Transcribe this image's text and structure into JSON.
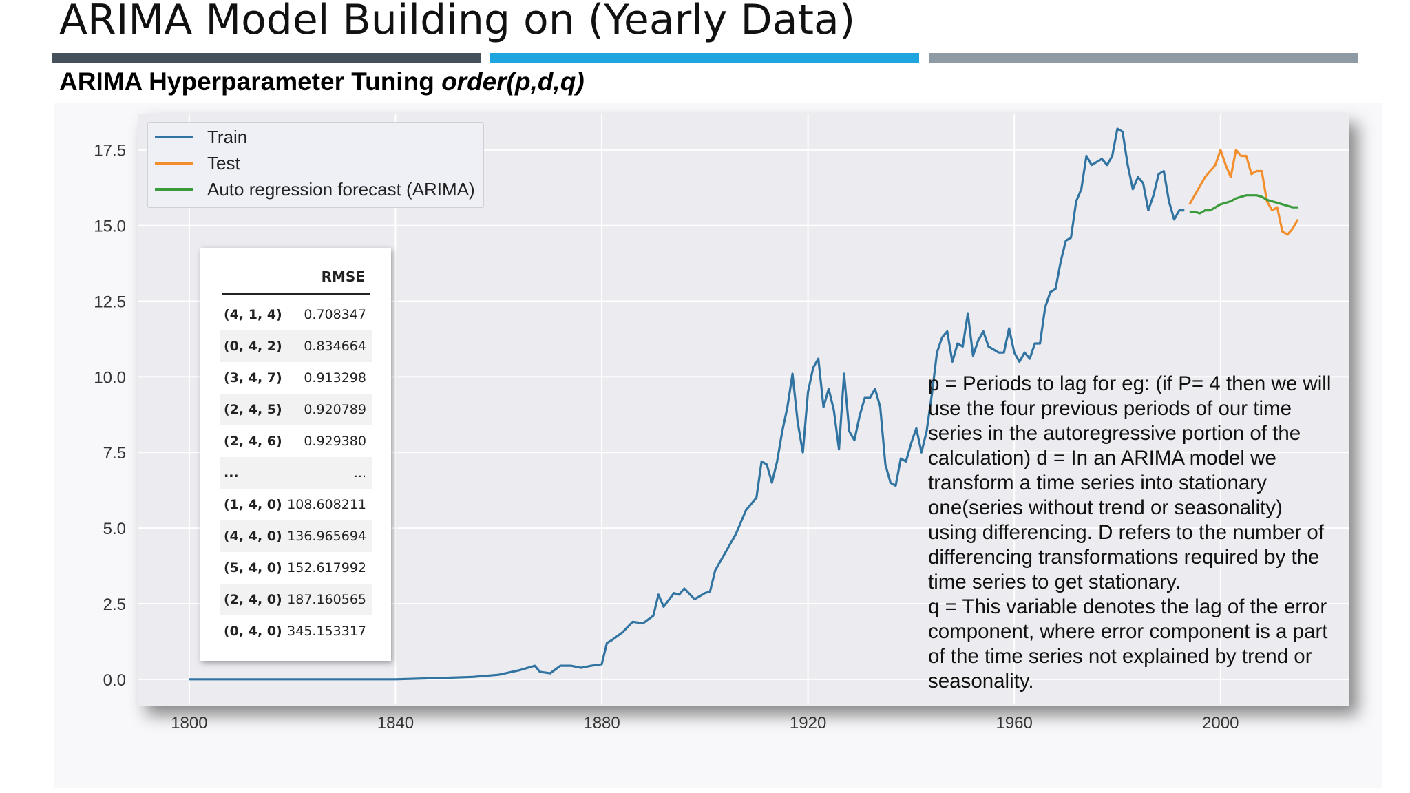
{
  "title": "ARIMA Model Building on (Yearly Data)",
  "subtitle": {
    "main": "ARIMA Hyperparameter Tuning ",
    "italic": "order(p,d,q)"
  },
  "colors": {
    "train": "#3274a1",
    "test": "#f28e2b",
    "forecast": "#3a9b3a",
    "bar_dark": "#44505c",
    "bar_blue": "#1fa5de",
    "bar_gray": "#8f9ba4"
  },
  "rmse_table": {
    "header": "RMSE",
    "rows": [
      {
        "order": "(4, 1, 4)",
        "rmse": "0.708347"
      },
      {
        "order": "(0, 4, 2)",
        "rmse": "0.834664"
      },
      {
        "order": "(3, 4, 7)",
        "rmse": "0.913298"
      },
      {
        "order": "(2, 4, 5)",
        "rmse": "0.920789"
      },
      {
        "order": "(2, 4, 6)",
        "rmse": "0.929380"
      },
      {
        "order": "...",
        "rmse": "..."
      },
      {
        "order": "(1, 4, 0)",
        "rmse": "108.608211"
      },
      {
        "order": "(4, 4, 0)",
        "rmse": "136.965694"
      },
      {
        "order": "(5, 4, 0)",
        "rmse": "152.617992"
      },
      {
        "order": "(2, 4, 0)",
        "rmse": "187.160565"
      },
      {
        "order": "(0, 4, 0)",
        "rmse": "345.153317"
      }
    ]
  },
  "explanation": {
    "p": "p = Periods to lag for eg: (if P= 4 then we will use the four previous periods of our time series in the autoregressive portion of the calculation) d = In an ARIMA model we transform a time series into stationary one(series without trend or seasonality) using differencing. D refers to the number of differencing transformations required by the time series to get stationary.",
    "q": "q = This variable denotes the lag of the error component, where error component is a part of the time series not explained by trend or seasonality."
  },
  "chart_data": {
    "type": "line",
    "xlim": [
      1790,
      2025
    ],
    "ylim": [
      -0.8,
      18.7
    ],
    "x_ticks": [
      1800,
      1840,
      1880,
      1920,
      1960,
      2000
    ],
    "y_ticks": [
      0.0,
      2.5,
      5.0,
      7.5,
      10.0,
      12.5,
      15.0,
      17.5
    ],
    "y_tick_labels": [
      "0.0",
      "2.5",
      "5.0",
      "7.5",
      "10.0",
      "12.5",
      "15.0",
      "17.5"
    ],
    "grid": true,
    "legend_position": "top-left",
    "series": [
      {
        "name": "Train",
        "x": [
          1800,
          1840,
          1850,
          1855,
          1860,
          1864,
          1867,
          1868,
          1870,
          1872,
          1874,
          1876,
          1878,
          1880,
          1881,
          1882,
          1884,
          1886,
          1888,
          1890,
          1891,
          1892,
          1894,
          1895,
          1896,
          1898,
          1900,
          1901,
          1902,
          1904,
          1905,
          1906,
          1908,
          1909,
          1910,
          1911,
          1912,
          1913,
          1914,
          1915,
          1916,
          1917,
          1918,
          1919,
          1920,
          1921,
          1922,
          1923,
          1924,
          1925,
          1926,
          1927,
          1928,
          1929,
          1930,
          1931,
          1932,
          1933,
          1934,
          1935,
          1936,
          1937,
          1938,
          1939,
          1940,
          1941,
          1942,
          1943,
          1944,
          1945,
          1946,
          1947,
          1948,
          1949,
          1950,
          1951,
          1952,
          1953,
          1954,
          1955,
          1956,
          1957,
          1958,
          1959,
          1960,
          1961,
          1962,
          1963,
          1964,
          1965,
          1966,
          1967,
          1968,
          1969,
          1970,
          1971,
          1972,
          1973,
          1974,
          1975,
          1976,
          1977,
          1978,
          1979,
          1980,
          1981,
          1982,
          1983,
          1984,
          1985,
          1986,
          1987,
          1988,
          1989,
          1990,
          1991,
          1992,
          1993
        ],
        "values": [
          0.0,
          0.0,
          0.05,
          0.08,
          0.15,
          0.3,
          0.45,
          0.25,
          0.2,
          0.45,
          0.45,
          0.38,
          0.45,
          0.5,
          1.2,
          1.3,
          1.55,
          1.9,
          1.85,
          2.1,
          2.8,
          2.4,
          2.85,
          2.8,
          3.0,
          2.65,
          2.85,
          2.9,
          3.6,
          4.2,
          4.5,
          4.8,
          5.6,
          5.8,
          6.0,
          7.2,
          7.1,
          6.5,
          7.2,
          8.2,
          9.0,
          10.1,
          8.5,
          7.5,
          9.5,
          10.3,
          10.6,
          9.0,
          9.6,
          8.9,
          7.6,
          10.1,
          8.2,
          7.9,
          8.7,
          9.3,
          9.3,
          9.6,
          9.0,
          7.1,
          6.5,
          6.4,
          7.3,
          7.2,
          7.8,
          8.3,
          7.5,
          8.2,
          9.4,
          10.8,
          11.3,
          11.5,
          10.5,
          11.1,
          11.0,
          12.1,
          10.7,
          11.2,
          11.5,
          11.0,
          10.9,
          10.8,
          10.8,
          11.6,
          10.8,
          10.5,
          10.8,
          10.6,
          11.1,
          11.1,
          12.3,
          12.8,
          12.9,
          13.8,
          14.5,
          14.6,
          15.8,
          16.2,
          17.3,
          17.0,
          17.1,
          17.2,
          17.0,
          17.3,
          18.2,
          18.1,
          17.0,
          16.2,
          16.6,
          16.4,
          15.5,
          16.0,
          16.7,
          16.8,
          15.8,
          15.2,
          15.5,
          15.5
        ]
      },
      {
        "name": "Test",
        "x": [
          1994,
          1995,
          1996,
          1997,
          1998,
          1999,
          2000,
          2001,
          2002,
          2003,
          2004,
          2005,
          2006,
          2007,
          2008,
          2009,
          2010,
          2011,
          2012,
          2013,
          2014,
          2015
        ],
        "values": [
          15.7,
          16.0,
          16.3,
          16.6,
          16.8,
          17.0,
          17.5,
          17.0,
          16.6,
          17.5,
          17.3,
          17.3,
          16.7,
          16.8,
          16.8,
          15.8,
          15.5,
          15.6,
          14.8,
          14.7,
          14.9,
          15.2
        ]
      },
      {
        "name": "Auto regression forecast (ARIMA)",
        "x": [
          1994,
          1995,
          1996,
          1997,
          1998,
          1999,
          2000,
          2001,
          2002,
          2003,
          2004,
          2005,
          2006,
          2007,
          2008,
          2009,
          2010,
          2011,
          2012,
          2013,
          2014,
          2015
        ],
        "values": [
          15.45,
          15.45,
          15.4,
          15.5,
          15.5,
          15.6,
          15.7,
          15.75,
          15.8,
          15.9,
          15.95,
          16.0,
          16.0,
          16.0,
          15.95,
          15.85,
          15.8,
          15.75,
          15.7,
          15.65,
          15.6,
          15.6
        ]
      }
    ]
  }
}
